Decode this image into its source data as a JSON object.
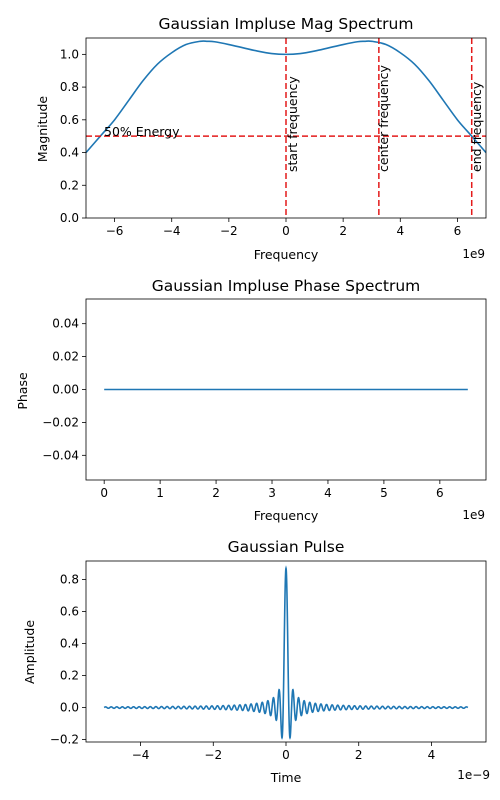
{
  "chart_data": [
    {
      "type": "line",
      "title": "Gaussian Impluse Mag Spectrum",
      "xlabel": "Frequency",
      "ylabel": "Magnitude",
      "x_offset_label": "1e9",
      "xlim": [
        -7,
        7
      ],
      "ylim": [
        0,
        1.1
      ],
      "xticks": [
        -6,
        -4,
        -2,
        0,
        2,
        4,
        6
      ],
      "yticks": [
        0.0,
        0.2,
        0.4,
        0.6,
        0.8,
        1.0
      ],
      "grid": false,
      "series": [
        {
          "x": [
            -7,
            -6.5,
            -6,
            -5.5,
            -5,
            -4.5,
            -4,
            -3.5,
            -3,
            -2.75,
            -2.5,
            -2,
            -1.5,
            -1,
            -0.5,
            0,
            0.5,
            1,
            1.5,
            2,
            2.5,
            2.75,
            3,
            3.5,
            4,
            4.5,
            5,
            5.5,
            6,
            6.5,
            7
          ],
          "values": [
            0.4,
            0.5,
            0.6,
            0.72,
            0.84,
            0.94,
            1.01,
            1.06,
            1.08,
            1.08,
            1.077,
            1.06,
            1.04,
            1.02,
            1.005,
            1.0,
            1.005,
            1.02,
            1.04,
            1.06,
            1.077,
            1.08,
            1.08,
            1.06,
            1.01,
            0.94,
            0.84,
            0.72,
            0.6,
            0.5,
            0.4
          ]
        }
      ],
      "hlines": [
        {
          "y": 0.5,
          "label": "50% Energy"
        }
      ],
      "vlines": [
        {
          "x": 0,
          "label": "start frequency"
        },
        {
          "x": 3.25,
          "label": "center frequency"
        },
        {
          "x": 6.5,
          "label": "end frequency"
        }
      ]
    },
    {
      "type": "line",
      "title": "Gaussian Impluse Phase Spectrum",
      "xlabel": "Frequency",
      "ylabel": "Phase",
      "x_offset_label": "1e9",
      "xlim": [
        -0.325,
        6.825
      ],
      "ylim": [
        -0.055,
        0.055
      ],
      "xticks": [
        0,
        1,
        2,
        3,
        4,
        5,
        6
      ],
      "yticks": [
        -0.04,
        -0.02,
        0.0,
        0.02,
        0.04
      ],
      "grid": false,
      "series": [
        {
          "x": [
            0,
            6.5
          ],
          "values": [
            0,
            0
          ]
        }
      ]
    },
    {
      "type": "line",
      "title": "Gaussian Pulse",
      "xlabel": "Time",
      "ylabel": "Amplitude",
      "x_offset_label": "1e−9",
      "xlim": [
        -5.5,
        5.5
      ],
      "ylim": [
        -0.215,
        0.915
      ],
      "xticks": [
        -4,
        -2,
        0,
        2,
        4
      ],
      "yticks": [
        -0.2,
        0.0,
        0.2,
        0.4,
        0.6,
        0.8
      ],
      "grid": false,
      "series": [
        {
          "function": "0.87 * sinc(6.5 * t) * cos(2π * 3.25 * t), t from -5 to 5",
          "peak": 0.87,
          "range": [
            -5,
            5
          ]
        }
      ]
    }
  ]
}
